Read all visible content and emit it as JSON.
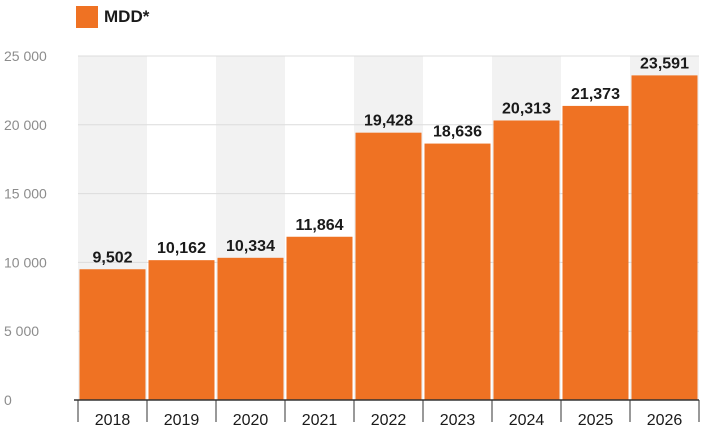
{
  "chart_data": {
    "type": "bar",
    "categories": [
      "2018",
      "2019",
      "2020",
      "2021",
      "2022",
      "2023",
      "2024",
      "2025",
      "2026"
    ],
    "series": [
      {
        "name": "MDD*",
        "values": [
          9502,
          10162,
          10334,
          11864,
          19428,
          18636,
          20313,
          21373,
          23591
        ]
      }
    ],
    "value_labels": [
      "9,502",
      "10,162",
      "10,334",
      "11,864",
      "19,428",
      "18,636",
      "20,313",
      "21,373",
      "23,591"
    ],
    "ylim": [
      0,
      25000
    ],
    "y_ticks": [
      0,
      5000,
      10000,
      15000,
      20000,
      25000
    ],
    "y_tick_labels": [
      "0",
      "5 000",
      "10 000",
      "15 000",
      "20 000",
      "25 000"
    ],
    "grid": true,
    "legend_position": "top-left",
    "colors": {
      "bar": "#EF7223",
      "stripe": "#F2F2F2",
      "grid": "#DCDCDC",
      "tick_text": "#8C8C8C",
      "label_text": "#1A1A1A"
    }
  }
}
